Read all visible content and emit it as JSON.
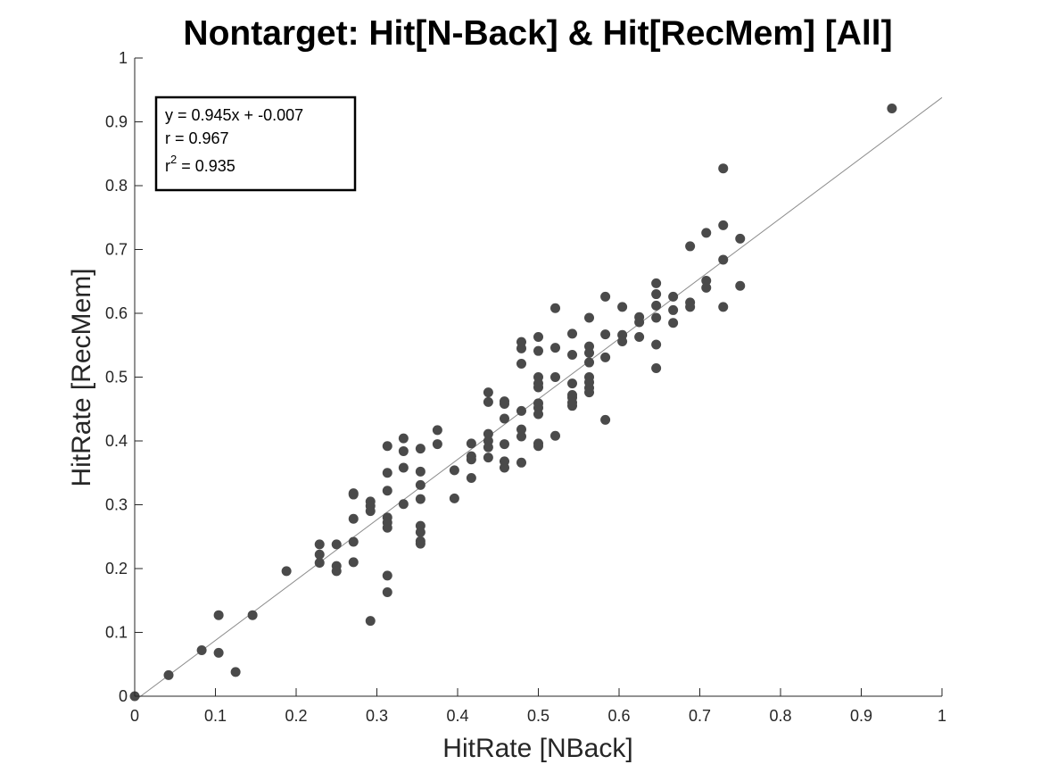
{
  "chart_data": {
    "type": "scatter",
    "title": "Nontarget: Hit[N-Back] & Hit[RecMem] [All]",
    "xlabel": "HitRate [NBack]",
    "ylabel": "HitRate [RecMem]",
    "xlim": [
      0,
      1
    ],
    "ylim": [
      0,
      1
    ],
    "xticks": [
      "0",
      "0.1",
      "0.2",
      "0.3",
      "0.4",
      "0.5",
      "0.6",
      "0.7",
      "0.8",
      "0.9",
      "1"
    ],
    "yticks": [
      "0",
      "0.1",
      "0.2",
      "0.3",
      "0.4",
      "0.5",
      "0.6",
      "0.7",
      "0.8",
      "0.9",
      "1"
    ],
    "grid": false,
    "colors": {
      "points": "#4a4a4a",
      "fit_line": "#8c8c8c",
      "axes": "#262626"
    },
    "fit": {
      "slope": 0.945,
      "intercept": -0.007
    },
    "stats": {
      "equation": "y = 0.945x + -0.007",
      "r": "r = 0.967",
      "r2_prefix": "r",
      "r2_exponent": "2",
      "r2_value": " = 0.935"
    },
    "points": [
      [
        0,
        0
      ],
      [
        0.042,
        0.033
      ],
      [
        0.083,
        0.072
      ],
      [
        0.104,
        0.127
      ],
      [
        0.104,
        0.068
      ],
      [
        0.125,
        0.038
      ],
      [
        0.146,
        0.127
      ],
      [
        0.188,
        0.196
      ],
      [
        0.229,
        0.238
      ],
      [
        0.229,
        0.222
      ],
      [
        0.229,
        0.209
      ],
      [
        0.25,
        0.238
      ],
      [
        0.25,
        0.204
      ],
      [
        0.25,
        0.196
      ],
      [
        0.271,
        0.318
      ],
      [
        0.271,
        0.316
      ],
      [
        0.271,
        0.278
      ],
      [
        0.271,
        0.242
      ],
      [
        0.271,
        0.21
      ],
      [
        0.292,
        0.305
      ],
      [
        0.292,
        0.298
      ],
      [
        0.292,
        0.29
      ],
      [
        0.292,
        0.118
      ],
      [
        0.313,
        0.392
      ],
      [
        0.313,
        0.35
      ],
      [
        0.313,
        0.322
      ],
      [
        0.313,
        0.28
      ],
      [
        0.313,
        0.272
      ],
      [
        0.313,
        0.264
      ],
      [
        0.313,
        0.189
      ],
      [
        0.313,
        0.163
      ],
      [
        0.333,
        0.404
      ],
      [
        0.333,
        0.384
      ],
      [
        0.333,
        0.358
      ],
      [
        0.333,
        0.301
      ],
      [
        0.354,
        0.388
      ],
      [
        0.354,
        0.352
      ],
      [
        0.354,
        0.331
      ],
      [
        0.354,
        0.309
      ],
      [
        0.354,
        0.267
      ],
      [
        0.354,
        0.257
      ],
      [
        0.354,
        0.243
      ],
      [
        0.354,
        0.239
      ],
      [
        0.375,
        0.417
      ],
      [
        0.375,
        0.395
      ],
      [
        0.396,
        0.354
      ],
      [
        0.396,
        0.31
      ],
      [
        0.417,
        0.396
      ],
      [
        0.417,
        0.376
      ],
      [
        0.417,
        0.371
      ],
      [
        0.417,
        0.342
      ],
      [
        0.438,
        0.476
      ],
      [
        0.438,
        0.461
      ],
      [
        0.438,
        0.411
      ],
      [
        0.438,
        0.4
      ],
      [
        0.438,
        0.39
      ],
      [
        0.438,
        0.374
      ],
      [
        0.458,
        0.462
      ],
      [
        0.458,
        0.458
      ],
      [
        0.458,
        0.435
      ],
      [
        0.458,
        0.395
      ],
      [
        0.458,
        0.368
      ],
      [
        0.458,
        0.358
      ],
      [
        0.479,
        0.555
      ],
      [
        0.479,
        0.545
      ],
      [
        0.479,
        0.521
      ],
      [
        0.479,
        0.447
      ],
      [
        0.479,
        0.418
      ],
      [
        0.479,
        0.407
      ],
      [
        0.479,
        0.366
      ],
      [
        0.5,
        0.563
      ],
      [
        0.5,
        0.541
      ],
      [
        0.5,
        0.5
      ],
      [
        0.5,
        0.49
      ],
      [
        0.5,
        0.484
      ],
      [
        0.5,
        0.459
      ],
      [
        0.5,
        0.452
      ],
      [
        0.5,
        0.442
      ],
      [
        0.5,
        0.396
      ],
      [
        0.5,
        0.392
      ],
      [
        0.521,
        0.608
      ],
      [
        0.521,
        0.546
      ],
      [
        0.521,
        0.5
      ],
      [
        0.521,
        0.408
      ],
      [
        0.542,
        0.568
      ],
      [
        0.542,
        0.535
      ],
      [
        0.542,
        0.49
      ],
      [
        0.542,
        0.472
      ],
      [
        0.542,
        0.468
      ],
      [
        0.542,
        0.46
      ],
      [
        0.542,
        0.455
      ],
      [
        0.563,
        0.593
      ],
      [
        0.563,
        0.548
      ],
      [
        0.563,
        0.538
      ],
      [
        0.563,
        0.523
      ],
      [
        0.563,
        0.5
      ],
      [
        0.563,
        0.492
      ],
      [
        0.563,
        0.483
      ],
      [
        0.563,
        0.476
      ],
      [
        0.583,
        0.626
      ],
      [
        0.583,
        0.567
      ],
      [
        0.583,
        0.531
      ],
      [
        0.583,
        0.433
      ],
      [
        0.604,
        0.61
      ],
      [
        0.604,
        0.566
      ],
      [
        0.604,
        0.556
      ],
      [
        0.625,
        0.594
      ],
      [
        0.625,
        0.586
      ],
      [
        0.625,
        0.563
      ],
      [
        0.646,
        0.647
      ],
      [
        0.646,
        0.63
      ],
      [
        0.646,
        0.612
      ],
      [
        0.646,
        0.593
      ],
      [
        0.646,
        0.551
      ],
      [
        0.646,
        0.514
      ],
      [
        0.667,
        0.626
      ],
      [
        0.667,
        0.605
      ],
      [
        0.667,
        0.585
      ],
      [
        0.688,
        0.705
      ],
      [
        0.688,
        0.617
      ],
      [
        0.688,
        0.61
      ],
      [
        0.708,
        0.726
      ],
      [
        0.708,
        0.651
      ],
      [
        0.708,
        0.64
      ],
      [
        0.729,
        0.827
      ],
      [
        0.729,
        0.738
      ],
      [
        0.729,
        0.684
      ],
      [
        0.729,
        0.61
      ],
      [
        0.75,
        0.717
      ],
      [
        0.75,
        0.643
      ],
      [
        0.938,
        0.921
      ]
    ]
  }
}
